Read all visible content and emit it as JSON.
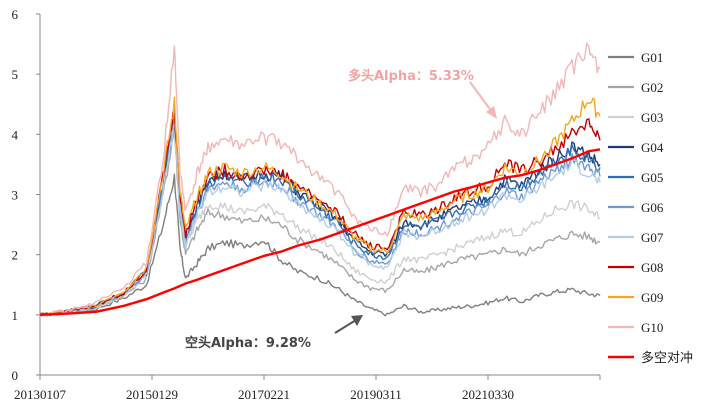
{
  "chart_data": {
    "type": "line",
    "title": "",
    "xlabel": "",
    "ylabel": "",
    "ylim": [
      0,
      6
    ],
    "yticks": [
      "0",
      "1",
      "2",
      "3",
      "4",
      "5",
      "6"
    ],
    "xtick_labels": [
      "20130107",
      "20150129",
      "20170221",
      "20190311",
      "20210330"
    ],
    "xlim": [
      2013.0,
      2023.0
    ],
    "grid": false,
    "legend_position": "right",
    "x": [
      2013.0,
      2013.5,
      2014.0,
      2014.5,
      2014.9,
      2015.2,
      2015.4,
      2015.5,
      2015.6,
      2015.8,
      2016.0,
      2016.3,
      2016.6,
      2017.0,
      2017.3,
      2017.6,
      2018.0,
      2018.3,
      2018.6,
      2018.9,
      2019.2,
      2019.5,
      2019.8,
      2020.1,
      2020.4,
      2020.7,
      2021.0,
      2021.3,
      2021.6,
      2021.9,
      2022.2,
      2022.5,
      2022.8,
      2023.0
    ],
    "series": [
      {
        "name": "G01",
        "color": "#7f7f7f",
        "values": [
          1.0,
          1.03,
          1.1,
          1.28,
          1.5,
          2.5,
          3.3,
          2.1,
          1.6,
          1.85,
          2.1,
          2.2,
          2.15,
          2.25,
          1.92,
          1.72,
          1.6,
          1.45,
          1.25,
          1.1,
          1.0,
          1.15,
          1.05,
          1.08,
          1.12,
          1.15,
          1.2,
          1.28,
          1.22,
          1.32,
          1.38,
          1.42,
          1.35,
          1.32
        ]
      },
      {
        "name": "G02",
        "color": "#a6a6a6",
        "values": [
          1.0,
          1.04,
          1.12,
          1.32,
          1.6,
          3.0,
          4.1,
          2.6,
          2.0,
          2.4,
          2.7,
          2.65,
          2.55,
          2.6,
          2.5,
          2.25,
          2.05,
          1.85,
          1.6,
          1.45,
          1.4,
          1.75,
          1.7,
          1.8,
          1.9,
          1.95,
          2.0,
          2.1,
          2.0,
          2.15,
          2.25,
          2.35,
          2.3,
          2.2
        ]
      },
      {
        "name": "G03",
        "color": "#d0d0d0",
        "values": [
          1.0,
          1.05,
          1.13,
          1.34,
          1.65,
          3.1,
          4.2,
          2.75,
          2.15,
          2.55,
          2.85,
          2.8,
          2.7,
          2.8,
          2.7,
          2.45,
          2.25,
          2.05,
          1.75,
          1.6,
          1.55,
          1.95,
          1.9,
          2.0,
          2.1,
          2.2,
          2.3,
          2.4,
          2.35,
          2.55,
          2.75,
          2.85,
          2.75,
          2.6
        ]
      },
      {
        "name": "G04",
        "color": "#1f3a7a",
        "values": [
          1.0,
          1.06,
          1.15,
          1.38,
          1.72,
          3.2,
          4.35,
          2.9,
          2.3,
          2.8,
          3.25,
          3.35,
          3.25,
          3.35,
          3.3,
          3.05,
          2.8,
          2.6,
          2.25,
          2.05,
          2.0,
          2.55,
          2.5,
          2.6,
          2.75,
          2.85,
          2.95,
          3.25,
          3.15,
          3.4,
          3.6,
          3.8,
          3.65,
          3.5
        ]
      },
      {
        "name": "G05",
        "color": "#2e6db4",
        "values": [
          1.0,
          1.06,
          1.15,
          1.37,
          1.7,
          3.15,
          4.3,
          2.85,
          2.25,
          2.75,
          3.2,
          3.3,
          3.2,
          3.3,
          3.25,
          3.0,
          2.75,
          2.55,
          2.2,
          2.0,
          1.95,
          2.5,
          2.45,
          2.55,
          2.7,
          2.8,
          2.9,
          3.2,
          3.1,
          3.35,
          3.55,
          3.75,
          3.6,
          3.45
        ]
      },
      {
        "name": "G06",
        "color": "#6a9bd8",
        "values": [
          1.0,
          1.05,
          1.14,
          1.36,
          1.68,
          3.1,
          4.25,
          2.8,
          2.2,
          2.7,
          3.1,
          3.2,
          3.1,
          3.2,
          3.15,
          2.9,
          2.65,
          2.45,
          2.1,
          1.9,
          1.85,
          2.4,
          2.35,
          2.45,
          2.6,
          2.7,
          2.8,
          3.05,
          2.95,
          3.2,
          3.4,
          3.6,
          3.45,
          3.3
        ]
      },
      {
        "name": "G07",
        "color": "#b4cde8",
        "values": [
          1.0,
          1.05,
          1.13,
          1.35,
          1.66,
          3.05,
          4.2,
          2.75,
          2.15,
          2.65,
          3.05,
          3.15,
          3.05,
          3.15,
          3.1,
          2.85,
          2.6,
          2.4,
          2.05,
          1.85,
          1.8,
          2.35,
          2.3,
          2.4,
          2.55,
          2.65,
          2.75,
          3.0,
          2.9,
          3.1,
          3.3,
          3.5,
          3.35,
          3.2
        ]
      },
      {
        "name": "G08",
        "color": "#c00000",
        "values": [
          1.0,
          1.06,
          1.16,
          1.38,
          1.75,
          3.3,
          4.4,
          3.0,
          2.35,
          2.9,
          3.3,
          3.4,
          3.3,
          3.4,
          3.35,
          3.15,
          2.9,
          2.7,
          2.35,
          2.15,
          2.1,
          2.7,
          2.65,
          2.75,
          2.95,
          3.05,
          3.15,
          3.5,
          3.4,
          3.55,
          3.75,
          4.0,
          4.2,
          3.9
        ]
      },
      {
        "name": "G09",
        "color": "#f5a623",
        "values": [
          1.0,
          1.06,
          1.17,
          1.4,
          1.78,
          3.35,
          4.5,
          3.05,
          2.4,
          2.95,
          3.35,
          3.45,
          3.35,
          3.45,
          3.35,
          3.1,
          2.85,
          2.65,
          2.3,
          2.1,
          2.05,
          2.65,
          2.6,
          2.7,
          2.9,
          3.0,
          3.1,
          3.45,
          3.35,
          3.55,
          3.85,
          4.2,
          4.6,
          4.3
        ]
      },
      {
        "name": "G10",
        "color": "#f2b6b6",
        "values": [
          1.0,
          1.07,
          1.2,
          1.45,
          1.85,
          3.6,
          5.4,
          3.4,
          2.7,
          3.3,
          3.8,
          3.9,
          3.8,
          3.95,
          3.85,
          3.6,
          3.3,
          3.05,
          2.65,
          2.4,
          2.35,
          3.1,
          3.05,
          3.15,
          3.45,
          3.6,
          3.8,
          4.2,
          4.0,
          4.35,
          4.7,
          5.1,
          5.4,
          5.1
        ]
      },
      {
        "name": "多空对冲",
        "color": "#ff0000",
        "values": [
          1.0,
          1.02,
          1.05,
          1.15,
          1.26,
          1.37,
          1.44,
          1.48,
          1.52,
          1.58,
          1.65,
          1.75,
          1.85,
          1.98,
          2.05,
          2.15,
          2.25,
          2.35,
          2.45,
          2.55,
          2.65,
          2.75,
          2.85,
          2.95,
          3.05,
          3.12,
          3.2,
          3.28,
          3.32,
          3.4,
          3.5,
          3.6,
          3.72,
          3.75
        ]
      }
    ],
    "annotations": [
      {
        "text": "多头Alpha：5.33%",
        "kind": "long"
      },
      {
        "text": "空头Alpha：9.28%",
        "kind": "short"
      }
    ]
  }
}
